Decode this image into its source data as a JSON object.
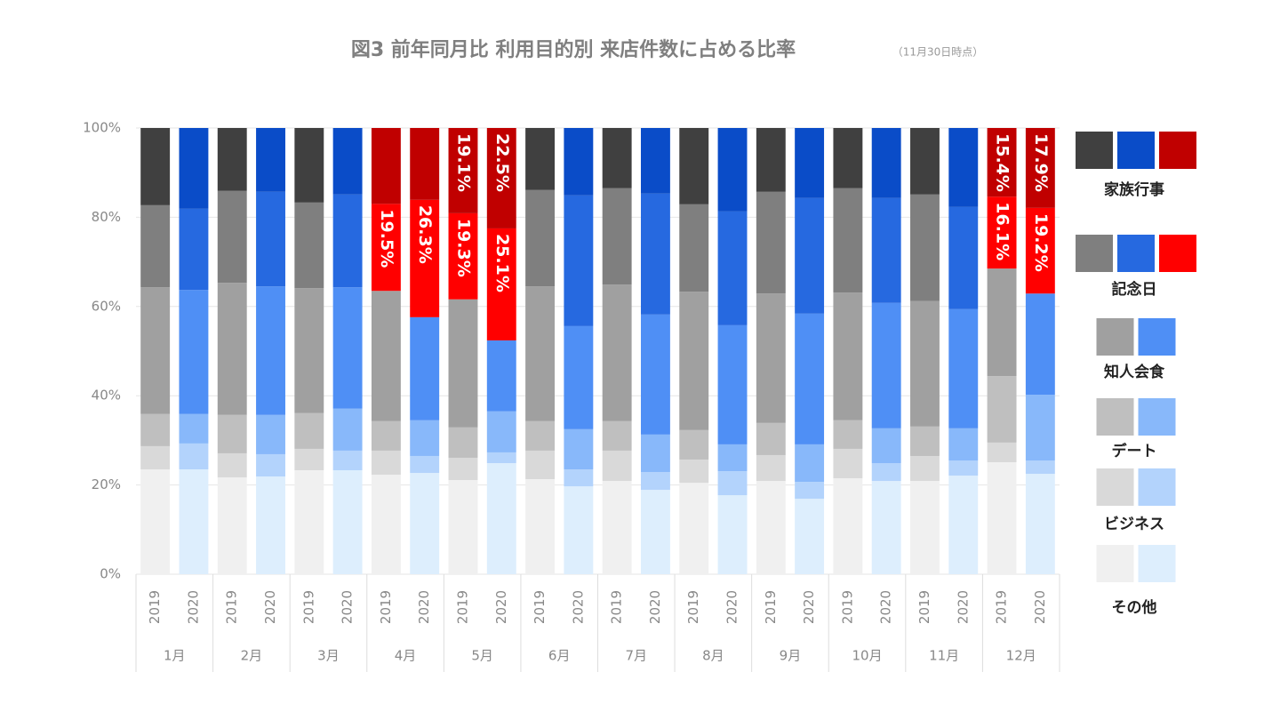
{
  "chart_data": {
    "type": "stacked_bar_100",
    "title": "図3 前年同月比 利用目的別 来店件数に占める比率",
    "subtitle": "（11月30日時点）",
    "categories": [
      "2019",
      "2020",
      "2019",
      "2020",
      "2019",
      "2020",
      "2019",
      "2020",
      "2019",
      "2020",
      "2019",
      "2020",
      "2019",
      "2020",
      "2019",
      "2020",
      "2019",
      "2020",
      "2019",
      "2020",
      "2019",
      "2020",
      "2019",
      "2020"
    ],
    "groups": [
      "1月",
      "2月",
      "3月",
      "4月",
      "5月",
      "6月",
      "7月",
      "8月",
      "9月",
      "10月",
      "11月",
      "12月"
    ],
    "ylim": [
      0,
      100
    ],
    "yticks": [
      {
        "value": 0,
        "label": "0%"
      },
      {
        "value": 20,
        "label": "20%"
      },
      {
        "value": 40,
        "label": "40%"
      },
      {
        "value": 60,
        "label": "60%"
      },
      {
        "value": 80,
        "label": "80%"
      },
      {
        "value": 100,
        "label": "100%"
      }
    ],
    "grid": true,
    "highlighted_bars": [
      6,
      7,
      8,
      9,
      22,
      23
    ],
    "series": [
      {
        "name": "その他",
        "colors": [
          "#f0f0f0",
          "#ddeefd"
        ],
        "values": [
          23.5,
          23.5,
          21.7,
          21.9,
          23.3,
          23.3,
          22.3,
          22.7,
          21.1,
          24.9,
          21.3,
          19.7,
          20.9,
          18.9,
          20.5,
          17.7,
          20.9,
          16.9,
          21.5,
          20.9,
          20.9,
          22.1,
          25.1,
          22.5
        ]
      },
      {
        "name": "ビジネス",
        "colors": [
          "#d9d9d9",
          "#b3d3fc"
        ],
        "values": [
          5.2,
          5.8,
          5.4,
          5.0,
          4.8,
          4.4,
          5.4,
          3.8,
          5.0,
          2.4,
          6.4,
          3.8,
          6.8,
          4.0,
          5.2,
          5.4,
          5.8,
          3.8,
          6.6,
          4.0,
          5.6,
          3.4,
          4.4,
          3.0
        ]
      },
      {
        "name": "デート",
        "colors": [
          "#bfbfbf",
          "#88b8fa"
        ],
        "values": [
          7.2,
          6.6,
          8.6,
          8.8,
          8.0,
          9.4,
          6.6,
          8.0,
          6.8,
          9.2,
          6.6,
          9.0,
          6.6,
          8.4,
          6.6,
          6.0,
          7.2,
          8.4,
          6.4,
          7.8,
          6.6,
          7.2,
          14.9,
          14.7
        ]
      },
      {
        "name": "知人会食",
        "colors": [
          "#a0a0a0",
          "#4f8ff5"
        ],
        "values": [
          28.4,
          27.8,
          29.6,
          28.8,
          28.0,
          27.2,
          29.2,
          23.1,
          28.7,
          15.9,
          30.2,
          23.1,
          30.6,
          26.9,
          31.0,
          26.7,
          29.0,
          29.3,
          28.6,
          28.1,
          28.1,
          26.7,
          24.1,
          22.7
        ]
      },
      {
        "name": "記念日",
        "colors": [
          "#7f7f7f",
          "#2669e0",
          "#ff0000"
        ],
        "values": [
          18.4,
          18.2,
          20.6,
          21.2,
          19.2,
          20.8,
          19.5,
          26.3,
          19.3,
          25.1,
          21.6,
          29.3,
          21.6,
          27.1,
          19.6,
          25.5,
          22.8,
          25.9,
          23.4,
          23.5,
          23.9,
          22.9,
          16.1,
          19.2
        ],
        "value_labels": [
          null,
          null,
          null,
          null,
          null,
          null,
          "19.5%",
          "26.3%",
          "19.3%",
          "25.1%",
          null,
          null,
          null,
          null,
          null,
          null,
          null,
          null,
          null,
          null,
          null,
          null,
          "16.1%",
          "19.2%"
        ]
      },
      {
        "name": "家族行事",
        "colors": [
          "#404040",
          "#0a4cc8",
          "#c00000"
        ],
        "values": [
          17.3,
          18.1,
          14.1,
          14.3,
          16.7,
          14.9,
          17.0,
          16.1,
          19.1,
          22.5,
          13.9,
          15.1,
          13.5,
          14.7,
          17.1,
          18.7,
          14.3,
          15.7,
          13.5,
          15.7,
          14.9,
          17.7,
          15.4,
          17.9
        ],
        "value_labels": [
          null,
          null,
          null,
          null,
          null,
          null,
          null,
          null,
          "19.1%",
          "22.5%",
          null,
          null,
          null,
          null,
          null,
          null,
          null,
          null,
          null,
          null,
          null,
          null,
          "15.4%",
          "17.9%"
        ]
      }
    ]
  }
}
